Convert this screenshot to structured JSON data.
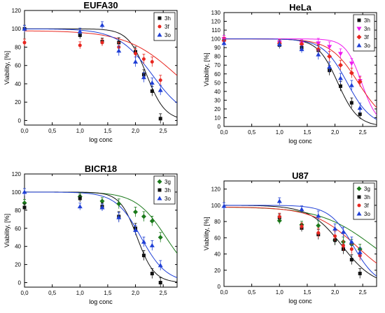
{
  "colors": {
    "3h": "#111111",
    "3f": "#e8261f",
    "3o": "#1f3fd6",
    "3n": "#ee19ee",
    "3g": "#1b7a1b",
    "axis": "#000000",
    "background": "#ffffff"
  },
  "chart_data": [
    {
      "type": "scatter",
      "title": "EUFA30",
      "xlabel": "log conc",
      "ylabel": "Viability, [%]",
      "xlim": [
        0,
        2.75
      ],
      "ylim": [
        -5,
        120
      ],
      "xticks": [
        "0,0",
        "0,5",
        "1,0",
        "1,5",
        "2,0",
        "2,5"
      ],
      "yticks": [
        "0",
        "20",
        "40",
        "60",
        "80",
        "100",
        "120"
      ],
      "legend_position": "top-right",
      "series": [
        {
          "name": "3h",
          "marker": "square",
          "color": "3h",
          "points": [
            [
              0.0,
              100
            ],
            [
              1.0,
              93
            ],
            [
              1.4,
              86
            ],
            [
              1.7,
              85
            ],
            [
              2.0,
              75
            ],
            [
              2.15,
              50
            ],
            [
              2.3,
              32
            ],
            [
              2.45,
              2
            ]
          ],
          "fit": {
            "top": 100,
            "bottom": 0,
            "logIC50": 2.2,
            "hill": 2.6
          }
        },
        {
          "name": "3f",
          "marker": "circle",
          "color": "3f",
          "points": [
            [
              0.0,
              85
            ],
            [
              1.0,
              82
            ],
            [
              1.4,
              85
            ],
            [
              1.7,
              80
            ],
            [
              2.0,
              73
            ],
            [
              2.15,
              67
            ],
            [
              2.3,
              64
            ],
            [
              2.45,
              44
            ]
          ],
          "fit": {
            "top": 98,
            "bottom": 0,
            "logIC50": 2.75,
            "hill": 0.95
          }
        },
        {
          "name": "3o",
          "marker": "triangle-up",
          "color": "3o",
          "points": [
            [
              0.0,
              100
            ],
            [
              1.0,
              97
            ],
            [
              1.4,
              104
            ],
            [
              1.7,
              76
            ],
            [
              2.0,
              64
            ],
            [
              2.15,
              47
            ],
            [
              2.3,
              41
            ],
            [
              2.45,
              33
            ]
          ],
          "fit": {
            "top": 100,
            "bottom": 0,
            "logIC50": 2.3,
            "hill": 1.4
          }
        }
      ]
    },
    {
      "type": "scatter",
      "title": "HeLa",
      "xlabel": "log conc",
      "ylabel": "Viability, [%]",
      "xlim": [
        0,
        2.75
      ],
      "ylim": [
        0,
        130
      ],
      "xticks": [
        "0,0",
        "0,5",
        "1,0",
        "1,5",
        "2,0",
        "2,5"
      ],
      "yticks": [
        "0",
        "10",
        "20",
        "30",
        "40",
        "50",
        "60",
        "70",
        "80",
        "90",
        "100",
        "110",
        "120",
        "130"
      ],
      "legend_position": "top-right",
      "series": [
        {
          "name": "3h",
          "marker": "square",
          "color": "3h",
          "points": [
            [
              0.0,
              100
            ],
            [
              1.0,
              93
            ],
            [
              1.4,
              90
            ],
            [
              1.7,
              87
            ],
            [
              1.9,
              64
            ],
            [
              2.1,
              46
            ],
            [
              2.3,
              27
            ],
            [
              2.45,
              14
            ]
          ],
          "fit": {
            "top": 100,
            "bottom": 0,
            "logIC50": 2.05,
            "hill": 2.4
          }
        },
        {
          "name": "3n",
          "marker": "triangle-down",
          "color": "3n",
          "points": [
            [
              0.0,
              100
            ],
            [
              1.0,
              96
            ],
            [
              1.4,
              95
            ],
            [
              1.7,
              95
            ],
            [
              1.9,
              91
            ],
            [
              2.1,
              83
            ],
            [
              2.3,
              72
            ],
            [
              2.45,
              52
            ]
          ],
          "fit": {
            "top": 100,
            "bottom": 0,
            "logIC50": 2.48,
            "hill": 3.0
          }
        },
        {
          "name": "3f",
          "marker": "diamond",
          "color": "3f",
          "points": [
            [
              0.0,
              98
            ],
            [
              1.0,
              95
            ],
            [
              1.4,
              94
            ],
            [
              1.7,
              88
            ],
            [
              1.9,
              80
            ],
            [
              2.1,
              70
            ],
            [
              2.3,
              61
            ],
            [
              2.45,
              51
            ]
          ],
          "fit": {
            "top": 100,
            "bottom": 0,
            "logIC50": 2.42,
            "hill": 1.7
          }
        },
        {
          "name": "3o",
          "marker": "triangle-up",
          "color": "3o",
          "points": [
            [
              0.0,
              95
            ],
            [
              1.0,
              94
            ],
            [
              1.4,
              88
            ],
            [
              1.7,
              82
            ],
            [
              1.9,
              68
            ],
            [
              2.1,
              55
            ],
            [
              2.3,
              47
            ],
            [
              2.45,
              21
            ]
          ],
          "fit": {
            "top": 100,
            "bottom": 0,
            "logIC50": 2.22,
            "hill": 2.0
          }
        }
      ]
    },
    {
      "type": "scatter",
      "title": "BICR18",
      "xlabel": "log conc",
      "ylabel": "Viability, [%]",
      "xlim": [
        0,
        2.75
      ],
      "ylim": [
        -5,
        120
      ],
      "xticks": [
        "0,0",
        "0,5",
        "1,0",
        "1,5",
        "2,0",
        "2,5"
      ],
      "yticks": [
        "0",
        "20",
        "40",
        "60",
        "80",
        "100",
        "120"
      ],
      "legend_position": "top-right",
      "series": [
        {
          "name": "3g",
          "marker": "diamond",
          "color": "3g",
          "points": [
            [
              0.0,
              88
            ],
            [
              1.0,
              95
            ],
            [
              1.4,
              90
            ],
            [
              1.7,
              87
            ],
            [
              2.0,
              78
            ],
            [
              2.15,
              73
            ],
            [
              2.3,
              68
            ],
            [
              2.45,
              50
            ]
          ],
          "fit": {
            "top": 100,
            "bottom": 0,
            "logIC50": 2.55,
            "hill": 1.6
          }
        },
        {
          "name": "3h",
          "marker": "square",
          "color": "3h",
          "points": [
            [
              0.0,
              83
            ],
            [
              1.0,
              93
            ],
            [
              1.4,
              84
            ],
            [
              1.7,
              73
            ],
            [
              2.0,
              60
            ],
            [
              2.15,
              30
            ],
            [
              2.3,
              10
            ],
            [
              2.45,
              0
            ]
          ],
          "fit": {
            "top": 100,
            "bottom": 0,
            "logIC50": 2.03,
            "hill": 2.8
          }
        },
        {
          "name": "3o",
          "marker": "triangle-up",
          "color": "3o",
          "points": [
            [
              0.0,
              100
            ],
            [
              1.0,
              84
            ],
            [
              1.4,
              83
            ],
            [
              1.7,
              72
            ],
            [
              2.0,
              58
            ],
            [
              2.15,
              45
            ],
            [
              2.3,
              41
            ],
            [
              2.45,
              19
            ]
          ],
          "fit": {
            "top": 100,
            "bottom": 0,
            "logIC50": 2.1,
            "hill": 1.9
          }
        }
      ]
    },
    {
      "type": "scatter",
      "title": "U87",
      "xlabel": "log conc",
      "ylabel": "Viability, [%]",
      "xlim": [
        0,
        2.75
      ],
      "ylim": [
        0,
        130
      ],
      "xticks": [
        "0,0",
        "0,5",
        "1,0",
        "1,5",
        "2,0",
        "2,5"
      ],
      "yticks": [
        "0",
        "20",
        "40",
        "60",
        "80",
        "100",
        "120"
      ],
      "legend_position": "top-right",
      "series": [
        {
          "name": "3g",
          "marker": "diamond",
          "color": "3g",
          "points": [
            [
              1.0,
              81
            ],
            [
              1.4,
              76
            ],
            [
              1.7,
              75
            ],
            [
              2.0,
              57
            ],
            [
              2.15,
              55
            ],
            [
              2.3,
              52
            ],
            [
              2.45,
              46
            ]
          ],
          "fit": {
            "top": 98,
            "bottom": 0,
            "logIC50": 2.7,
            "hill": 0.9
          }
        },
        {
          "name": "3h",
          "marker": "square",
          "color": "3h",
          "points": [
            [
              1.0,
              85
            ],
            [
              1.4,
              72
            ],
            [
              1.7,
              64
            ],
            [
              2.0,
              57
            ],
            [
              2.15,
              46
            ],
            [
              2.3,
              33
            ],
            [
              2.45,
              16
            ]
          ],
          "fit": {
            "top": 100,
            "bottom": 0,
            "logIC50": 2.13,
            "hill": 1.5
          }
        },
        {
          "name": "3f",
          "marker": "circle",
          "color": "3f",
          "points": [
            [
              1.0,
              86
            ],
            [
              1.4,
              74
            ],
            [
              1.7,
              66
            ],
            [
              2.0,
              62
            ],
            [
              2.15,
              50
            ],
            [
              2.3,
              46
            ],
            [
              2.45,
              38
            ]
          ],
          "fit": {
            "top": 98,
            "bottom": 0,
            "logIC50": 2.4,
            "hill": 1.1
          }
        },
        {
          "name": "3o",
          "marker": "triangle-up",
          "color": "3o",
          "points": [
            [
              0.0,
              99
            ],
            [
              1.0,
              105
            ],
            [
              1.4,
              95
            ],
            [
              1.7,
              87
            ],
            [
              2.0,
              71
            ],
            [
              2.15,
              67
            ],
            [
              2.3,
              55
            ],
            [
              2.45,
              42
            ]
          ],
          "fit": {
            "top": 100,
            "bottom": 0,
            "logIC50": 2.33,
            "hill": 2.0
          }
        }
      ]
    }
  ]
}
